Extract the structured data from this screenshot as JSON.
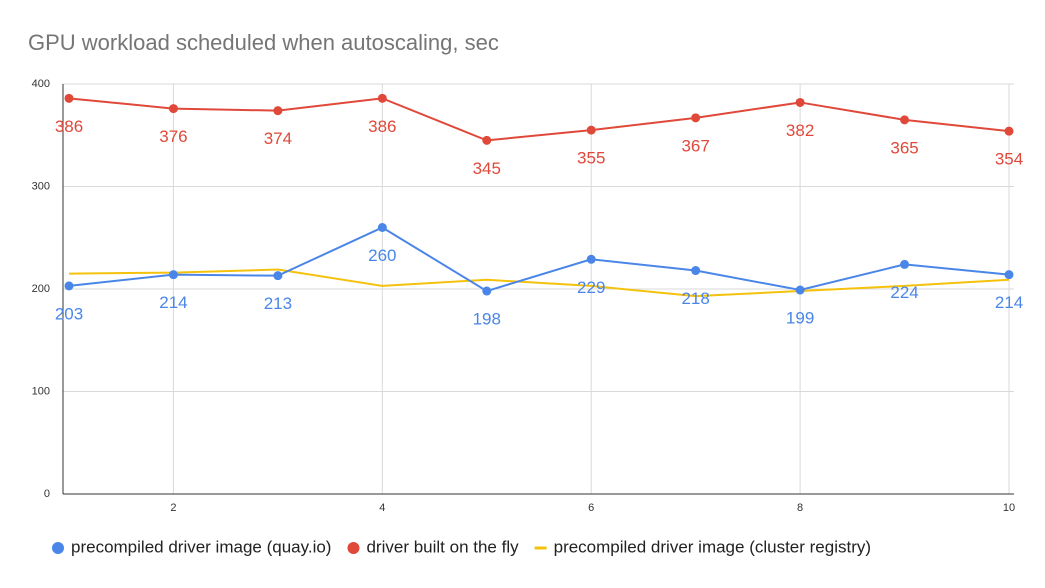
{
  "chart_data": {
    "type": "line",
    "title": "GPU workload scheduled when autoscaling, sec",
    "x": [
      1,
      2,
      3,
      4,
      5,
      6,
      7,
      8,
      9,
      10
    ],
    "xlim": [
      1,
      10
    ],
    "xticks": [
      2,
      4,
      6,
      8,
      10
    ],
    "ylim": [
      0,
      400
    ],
    "yticks": [
      0,
      100,
      200,
      300,
      400
    ],
    "grid": true,
    "legend": "bottom",
    "series": [
      {
        "name": "precompiled driver image (quay.io)",
        "color": "#4a86e8",
        "markers": true,
        "data_labels": true,
        "values": [
          203,
          214,
          213,
          260,
          198,
          229,
          218,
          199,
          224,
          214
        ]
      },
      {
        "name": "driver built on the fly",
        "color": "#e0483a",
        "markers": true,
        "data_labels": true,
        "values": [
          386,
          376,
          374,
          386,
          345,
          355,
          367,
          382,
          365,
          354
        ]
      },
      {
        "name": "precompiled driver image (cluster registry)",
        "color": "#f4c20d",
        "markers": false,
        "data_labels": false,
        "values": [
          215,
          216,
          219,
          203,
          209,
          203,
          193,
          198,
          203,
          209
        ]
      }
    ]
  }
}
